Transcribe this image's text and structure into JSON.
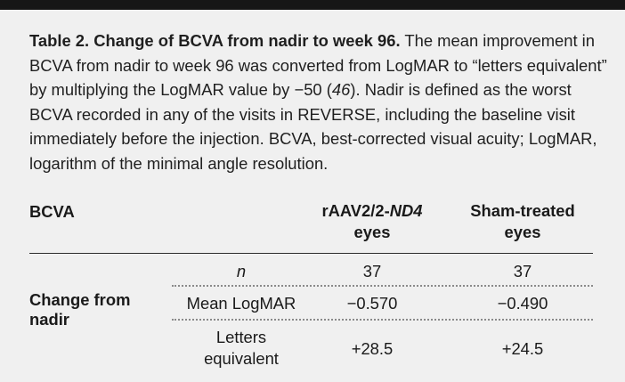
{
  "caption": {
    "title": "Table 2. Change of BCVA from nadir to week 96.",
    "text_a": " The mean improvement in BCVA from nadir to week 96 was converted from LogMAR to “letters equivalent” by multiplying the LogMAR value by −50 (",
    "ref": "46",
    "text_b": "). Nadir is defined as the worst BCVA recorded in any of the visits in REVERSE, including the baseline visit immediately before the injection. BCVA, best-corrected visual acuity; LogMAR, logarithm of the minimal angle resolution."
  },
  "table": {
    "header_left": "BCVA",
    "col1_a": "rAAV2/2-",
    "col1_b": "ND4",
    "col1_c": "eyes",
    "col2_a": "Sham-treated",
    "col2_b": "eyes",
    "row_label_a": "Change from",
    "row_label_b": "nadir",
    "rows": [
      {
        "stat": "n",
        "v1": "37",
        "v2": "37"
      },
      {
        "stat": "Mean LogMAR",
        "v1": "−0.570",
        "v2": "−0.490"
      },
      {
        "stat_a": "Letters",
        "stat_b": "equivalent",
        "v1": "+28.5",
        "v2": "+24.5"
      }
    ]
  }
}
